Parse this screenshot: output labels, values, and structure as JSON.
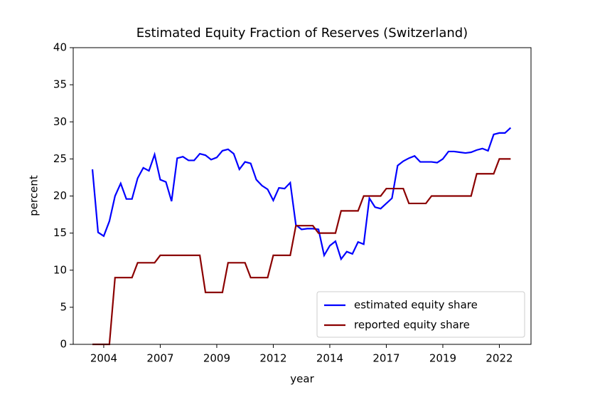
{
  "chart_data": {
    "type": "line",
    "title": "Estimated Equity Fraction of Reserves (Switzerland)",
    "x_label": "year",
    "y_label": "percent",
    "x": [
      2004.0,
      2004.25,
      2004.5,
      2004.75,
      2005.0,
      2005.25,
      2005.5,
      2005.75,
      2006.0,
      2006.25,
      2006.5,
      2006.75,
      2007.0,
      2007.25,
      2007.5,
      2007.75,
      2008.0,
      2008.25,
      2008.5,
      2008.75,
      2009.0,
      2009.25,
      2009.5,
      2009.75,
      2010.0,
      2010.25,
      2010.5,
      2010.75,
      2011.0,
      2011.25,
      2011.5,
      2011.75,
      2012.0,
      2012.25,
      2012.5,
      2012.75,
      2013.0,
      2013.25,
      2013.5,
      2013.75,
      2014.0,
      2014.25,
      2014.5,
      2014.75,
      2015.0,
      2015.25,
      2015.5,
      2015.75,
      2016.0,
      2016.25,
      2016.5,
      2016.75,
      2017.0,
      2017.25,
      2017.5,
      2017.75,
      2018.0,
      2018.25,
      2018.5,
      2018.75,
      2019.0,
      2019.25,
      2019.5,
      2019.75,
      2020.0,
      2020.25,
      2020.5,
      2020.75,
      2021.0,
      2021.25,
      2021.5,
      2021.75,
      2022.0,
      2022.25,
      2022.5
    ],
    "series": [
      {
        "name": "estimated equity share",
        "color": "#0000ff",
        "values": [
          23.6,
          15.1,
          14.6,
          16.6,
          20.0,
          21.7,
          19.6,
          19.6,
          22.4,
          23.8,
          23.4,
          25.6,
          22.2,
          21.9,
          19.3,
          25.1,
          25.3,
          24.8,
          24.8,
          25.7,
          25.5,
          24.9,
          25.2,
          26.1,
          26.3,
          25.7,
          23.6,
          24.6,
          24.4,
          22.2,
          21.4,
          20.9,
          19.4,
          21.1,
          21.0,
          21.8,
          16.1,
          15.5,
          15.6,
          15.6,
          15.5,
          12.0,
          13.3,
          13.9,
          11.5,
          12.5,
          12.2,
          13.8,
          13.5,
          19.7,
          18.5,
          18.3,
          19.0,
          19.7,
          24.1,
          24.7,
          25.1,
          25.4,
          24.6,
          24.6,
          24.6,
          24.5,
          25.0,
          26.0,
          26.0,
          25.9,
          25.8,
          25.9,
          26.2,
          26.4,
          26.1,
          28.3,
          28.5,
          28.5,
          29.2
        ]
      },
      {
        "name": "reported equity share",
        "color": "#8b0000",
        "values": [
          0,
          0,
          0,
          0,
          9,
          9,
          9,
          9,
          11,
          11,
          11,
          11,
          12,
          12,
          12,
          12,
          12,
          12,
          12,
          12,
          7,
          7,
          7,
          7,
          11,
          11,
          11,
          11,
          9,
          9,
          9,
          9,
          12,
          12,
          12,
          12,
          16,
          16,
          16,
          16,
          15,
          15,
          15,
          15,
          18,
          18,
          18,
          18,
          20,
          20,
          20,
          20,
          21,
          21,
          21,
          21,
          19,
          19,
          19,
          19,
          20,
          20,
          20,
          20,
          20,
          20,
          20,
          20,
          23,
          23,
          23,
          23,
          25,
          25,
          25
        ]
      }
    ],
    "xlim": [
      2003.15,
      2023.4
    ],
    "xticks": [
      {
        "value": 2004.5,
        "label": "2004"
      },
      {
        "value": 2007.0,
        "label": "2007"
      },
      {
        "value": 2009.5,
        "label": "2009"
      },
      {
        "value": 2012.0,
        "label": "2012"
      },
      {
        "value": 2014.5,
        "label": "2014"
      },
      {
        "value": 2017.0,
        "label": "2017"
      },
      {
        "value": 2019.5,
        "label": "2019"
      },
      {
        "value": 2022.0,
        "label": "2022"
      }
    ],
    "ylim": [
      0,
      40
    ],
    "yticks": [
      0,
      5,
      10,
      15,
      20,
      25,
      30,
      35,
      40
    ],
    "legend": "lower right"
  }
}
